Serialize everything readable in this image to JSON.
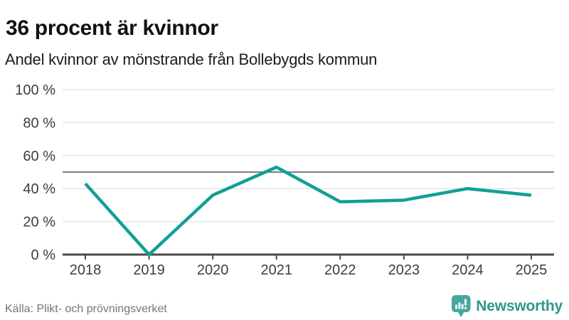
{
  "header": {
    "title": "36 procent är kvinnor",
    "subtitle": "Andel kvinnor av mönstrande från Bollebygds kommun"
  },
  "footer": {
    "source": "Källa: Plikt- och prövningsverket",
    "logo_text": "Newsworthy",
    "logo_icon": "speech-bubble-bar-chart-icon"
  },
  "colors": {
    "line": "#10a094",
    "grid": "#e4e4e4",
    "reference_line": "#7f7f7f",
    "axis": "#4a4a4a",
    "tick_text": "#3d3d3d",
    "title_text": "#111111",
    "source_text": "#767676",
    "logo_teal": "#2f968f",
    "logo_icon_teal": "#48a79f"
  },
  "chart_data": {
    "type": "line",
    "title": "36 procent är kvinnor",
    "subtitle": "Andel kvinnor av mönstrande från Bollebygds kommun",
    "source": "Källa: Plikt- och prövningsverket",
    "categories": [
      "2018",
      "2019",
      "2020",
      "2021",
      "2022",
      "2023",
      "2024",
      "2025"
    ],
    "series": [
      {
        "name": "Andel kvinnor av mönstrande (%)",
        "values": [
          43,
          0,
          36,
          53,
          32,
          33,
          40,
          36
        ]
      }
    ],
    "ylabel": "",
    "xlabel": "",
    "ylim": [
      0,
      100
    ],
    "yticks": [
      {
        "value": 0,
        "label": "0 %"
      },
      {
        "value": 20,
        "label": "20 %"
      },
      {
        "value": 40,
        "label": "40 %"
      },
      {
        "value": 60,
        "label": "60 %"
      },
      {
        "value": 80,
        "label": "80 %"
      },
      {
        "value": 100,
        "label": "100 %"
      }
    ],
    "reference_line": 50,
    "grid": "horizontal",
    "legend": "none"
  }
}
